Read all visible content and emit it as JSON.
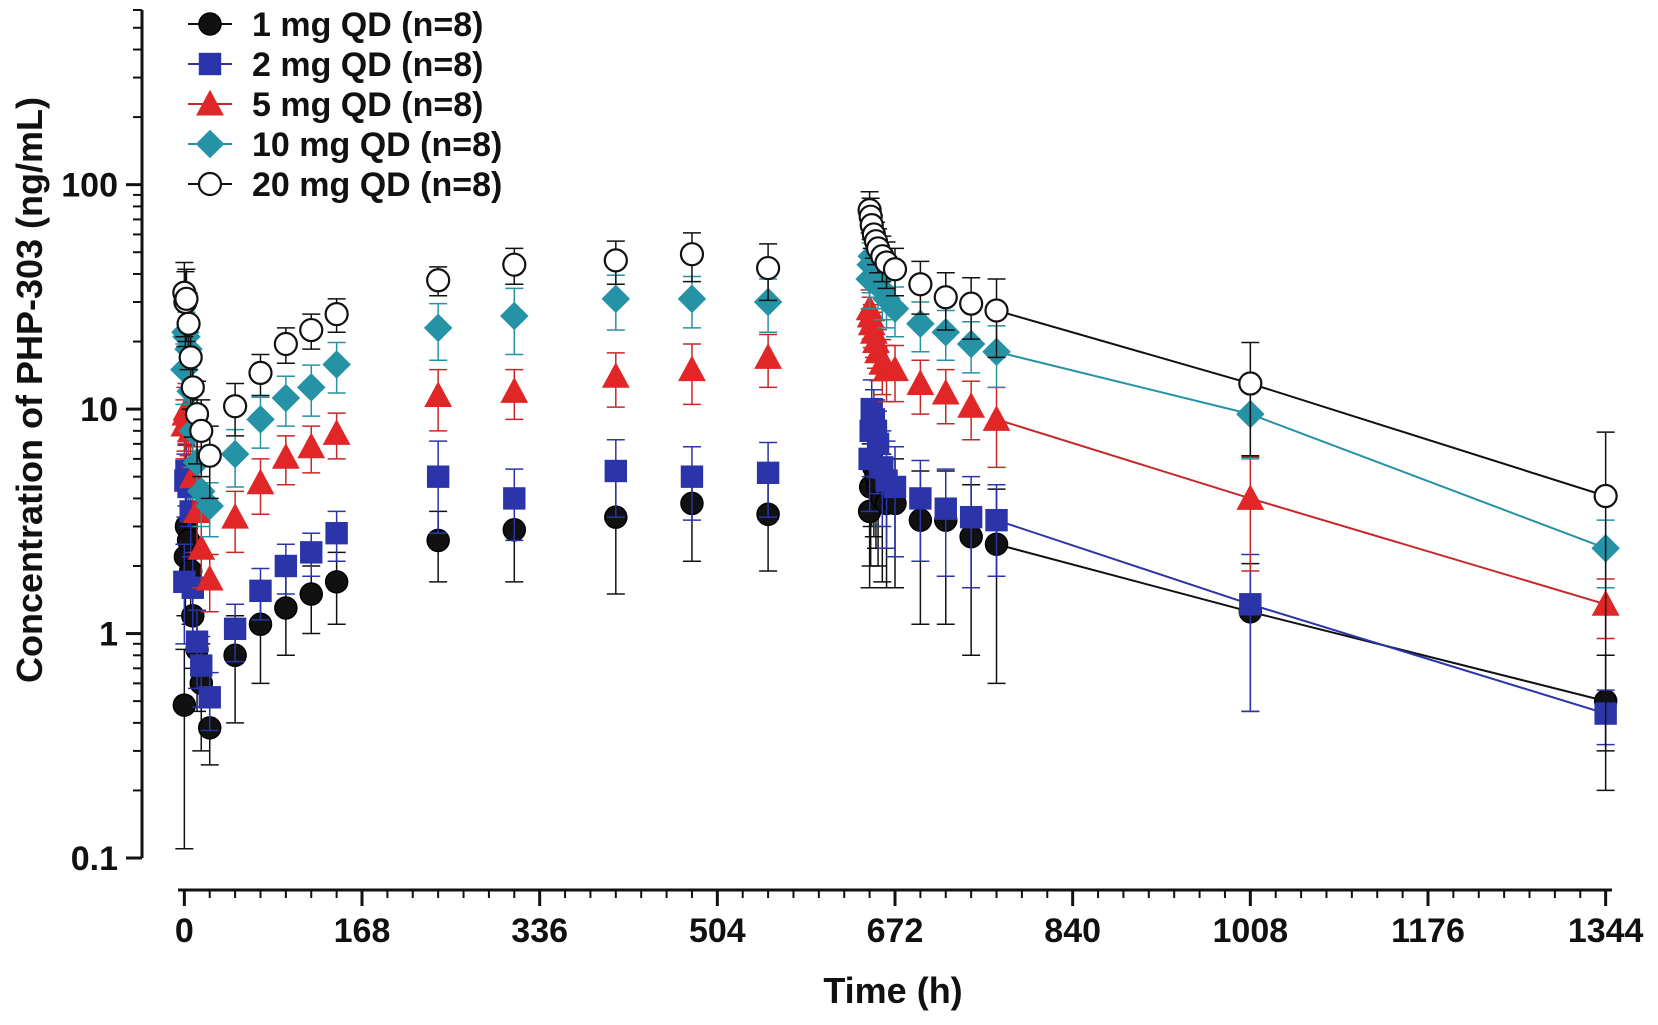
{
  "chart_data": {
    "type": "scatter",
    "title": "",
    "xlabel": "Time (h)",
    "ylabel": "Concentration of PHP-303 (ng/mL)",
    "xlim": [
      -6,
      1350
    ],
    "ylim": [
      0.1,
      600
    ],
    "yscale": "log",
    "xticks": [
      0,
      168,
      336,
      504,
      672,
      840,
      1008,
      1176,
      1344
    ],
    "xtick_labels": [
      "0",
      "168",
      "336",
      "504",
      "672",
      "840",
      "1008",
      "1176",
      "1344"
    ],
    "yticks": [
      0.1,
      1,
      10,
      100
    ],
    "ytick_labels": [
      "0.1",
      "1",
      "10",
      "100"
    ],
    "legend_position": "top-left",
    "grid": false,
    "series": [
      {
        "name": "1 mg QD (n=8)",
        "marker": "circle",
        "filled": true,
        "color": "#111111",
        "line_color": "#111111",
        "x": [
          0,
          1,
          2,
          4,
          6,
          8,
          12,
          16,
          24,
          48,
          72,
          96,
          120,
          144,
          240,
          312,
          408,
          480,
          552,
          648,
          649,
          650,
          652,
          654,
          656,
          660,
          664,
          672,
          696,
          720,
          744,
          768,
          1008,
          1344
        ],
        "y": [
          0.48,
          2.2,
          3.0,
          2.6,
          1.9,
          1.2,
          0.85,
          0.6,
          0.38,
          0.8,
          1.1,
          1.3,
          1.5,
          1.7,
          2.6,
          2.9,
          3.3,
          3.8,
          3.4,
          3.5,
          4.5,
          6.0,
          5.5,
          5.0,
          4.5,
          4.0,
          3.8,
          3.8,
          3.2,
          3.2,
          2.7,
          2.5,
          1.25,
          0.5
        ],
        "err": [
          0.37,
          1.0,
          1.2,
          1.0,
          0.8,
          0.5,
          0.4,
          0.3,
          0.12,
          0.4,
          0.5,
          0.5,
          0.5,
          0.6,
          0.9,
          1.2,
          1.8,
          1.7,
          1.5,
          1.9,
          2.5,
          3.0,
          2.8,
          2.6,
          2.5,
          2.3,
          2.2,
          2.2,
          2.1,
          2.1,
          1.9,
          1.9,
          0.8,
          0.3
        ],
        "connect_from": 31
      },
      {
        "name": "2 mg QD (n=8)",
        "marker": "square",
        "filled": true,
        "color": "#2b34a8",
        "line_color": "#2b34a8",
        "x": [
          0,
          1,
          2,
          4,
          6,
          8,
          12,
          16,
          24,
          48,
          72,
          96,
          120,
          144,
          240,
          312,
          408,
          480,
          552,
          648,
          649,
          650,
          652,
          654,
          656,
          660,
          664,
          672,
          696,
          720,
          744,
          768,
          1008,
          1344
        ],
        "y": [
          1.7,
          4.8,
          5.3,
          4.5,
          3.5,
          1.6,
          0.92,
          0.72,
          0.52,
          1.05,
          1.55,
          2.0,
          2.3,
          2.8,
          5.0,
          4.0,
          5.3,
          5.0,
          5.2,
          6.0,
          8.0,
          10.0,
          9.0,
          8.0,
          7.0,
          5.5,
          4.8,
          4.5,
          4.0,
          3.6,
          3.3,
          3.2,
          1.35,
          0.44
        ],
        "err": [
          0.8,
          1.5,
          1.6,
          1.5,
          1.3,
          0.7,
          0.35,
          0.25,
          0.15,
          0.3,
          0.4,
          0.5,
          0.5,
          0.7,
          2.2,
          1.4,
          2.0,
          1.8,
          1.9,
          2.5,
          3.0,
          3.5,
          3.2,
          3.0,
          2.8,
          2.5,
          2.4,
          2.3,
          1.9,
          1.8,
          1.7,
          1.4,
          0.9,
          0.12
        ],
        "connect_from": 31
      },
      {
        "name": "5 mg QD (n=8)",
        "marker": "triangle",
        "filled": true,
        "color": "#e02626",
        "line_color": "#c62828",
        "x": [
          0,
          1,
          2,
          4,
          6,
          8,
          12,
          16,
          24,
          48,
          72,
          96,
          120,
          144,
          240,
          312,
          408,
          480,
          552,
          648,
          649,
          650,
          652,
          654,
          656,
          660,
          664,
          672,
          696,
          720,
          744,
          768,
          1008,
          1344
        ],
        "y": [
          8.5,
          9.5,
          10.0,
          9.0,
          8.0,
          5.0,
          3.5,
          2.4,
          1.75,
          3.3,
          4.7,
          6.1,
          6.8,
          7.8,
          11.5,
          12.0,
          14.0,
          15.0,
          17.0,
          28.0,
          26.0,
          24.0,
          22.0,
          20.0,
          18.0,
          16.0,
          15.0,
          15.0,
          13.0,
          11.8,
          10.3,
          9.0,
          4.0,
          1.35
        ],
        "err": [
          2.5,
          3.0,
          3.0,
          2.8,
          2.5,
          1.8,
          1.2,
          0.8,
          0.5,
          1.0,
          1.3,
          1.5,
          1.6,
          1.8,
          3.5,
          3.0,
          3.8,
          4.5,
          4.5,
          6.0,
          5.5,
          5.2,
          5.0,
          4.8,
          4.6,
          4.4,
          4.2,
          4.2,
          3.5,
          3.2,
          3.0,
          3.5,
          2.1,
          0.4
        ],
        "connect_from": 31
      },
      {
        "name": "10 mg QD (n=8)",
        "marker": "diamond",
        "filled": true,
        "color": "#2592a6",
        "line_color": "#2592a6",
        "x": [
          0,
          1,
          2,
          4,
          6,
          8,
          12,
          16,
          24,
          48,
          72,
          96,
          120,
          144,
          240,
          312,
          408,
          480,
          552,
          648,
          649,
          650,
          652,
          654,
          656,
          660,
          664,
          672,
          696,
          720,
          744,
          768,
          1008,
          1344
        ],
        "y": [
          15.0,
          22.0,
          21.0,
          18.5,
          12.0,
          8.0,
          5.8,
          4.3,
          3.7,
          6.3,
          9.0,
          11.2,
          12.5,
          15.8,
          23.0,
          26.0,
          31.0,
          31.0,
          30.0,
          38.0,
          44.0,
          48.0,
          45.0,
          42.0,
          38.0,
          34.0,
          31.0,
          28.0,
          24.0,
          22.0,
          19.5,
          18.0,
          9.5,
          2.4
        ],
        "err": [
          4.5,
          6.5,
          6.0,
          5.5,
          4.0,
          2.5,
          1.8,
          1.3,
          1.0,
          1.8,
          2.3,
          2.8,
          3.2,
          4.0,
          6.5,
          8.5,
          8.5,
          8.0,
          8.0,
          10.0,
          11.0,
          12.0,
          11.0,
          10.5,
          10.0,
          9.0,
          8.0,
          7.0,
          6.0,
          5.5,
          5.0,
          5.5,
          3.5,
          0.8
        ],
        "connect_from": 31
      },
      {
        "name": "20 mg QD (n=8)",
        "marker": "circle",
        "filled": false,
        "color": "#111111",
        "line_color": "#111111",
        "x": [
          0,
          1,
          2,
          4,
          6,
          8,
          12,
          16,
          24,
          48,
          72,
          96,
          120,
          144,
          240,
          312,
          408,
          480,
          552,
          648,
          649,
          650,
          652,
          654,
          656,
          660,
          664,
          672,
          696,
          720,
          744,
          768,
          1008,
          1344
        ],
        "y": [
          33.0,
          30.0,
          31.0,
          24.0,
          17.0,
          12.5,
          9.5,
          8.0,
          6.2,
          10.3,
          14.5,
          19.5,
          22.5,
          26.5,
          37.5,
          44.0,
          46.0,
          49.0,
          42.5,
          77.0,
          72.0,
          66.0,
          60.0,
          56.0,
          52.0,
          48.0,
          45.0,
          42.0,
          36.0,
          31.5,
          29.5,
          27.5,
          13.0,
          4.1
        ],
        "err": [
          12.0,
          11.0,
          11.0,
          9.0,
          7.0,
          5.0,
          3.8,
          3.0,
          2.2,
          2.7,
          3.0,
          3.5,
          4.0,
          4.5,
          5.5,
          8.0,
          10.0,
          12.0,
          12.0,
          16.0,
          15.0,
          14.0,
          13.0,
          12.0,
          11.5,
          11.0,
          10.5,
          10.0,
          9.5,
          9.0,
          9.0,
          10.5,
          6.8,
          3.8
        ],
        "connect_from": 31
      }
    ]
  }
}
